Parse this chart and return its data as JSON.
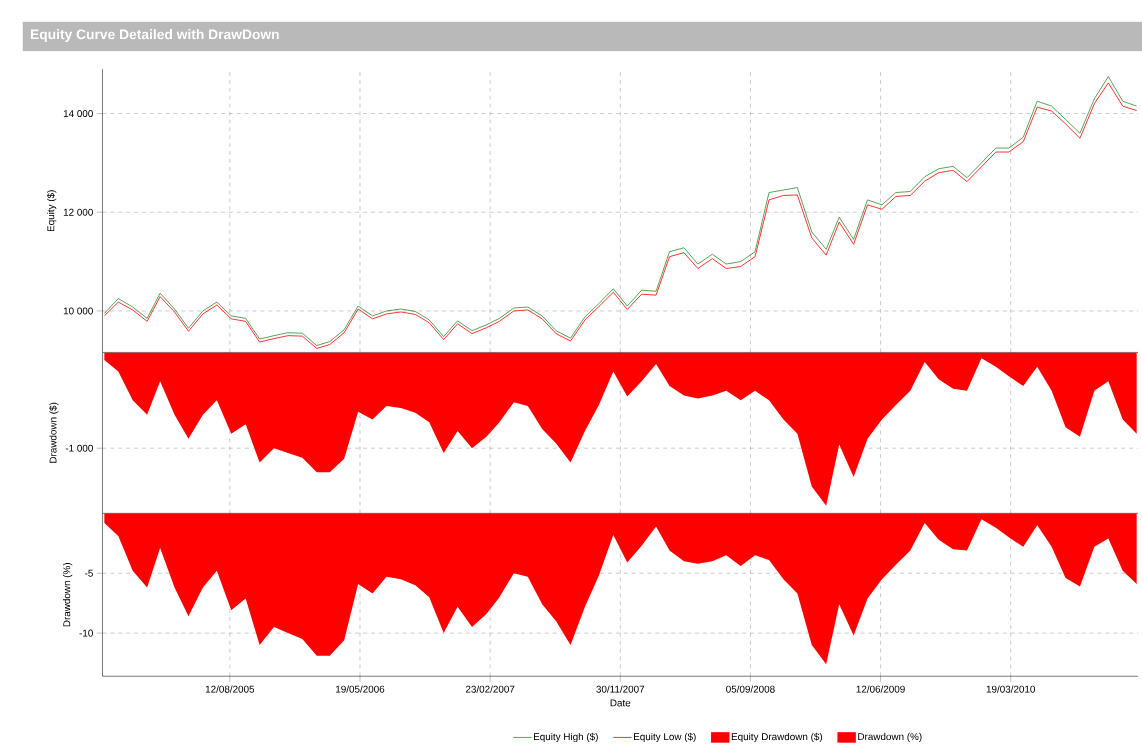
{
  "chart_data": [
    {
      "type": "line",
      "title": "Equity Curve Detailed with DrawDown",
      "ylabel": "Equity ($)",
      "legend": "bottom",
      "grid": true,
      "tick_labels": "y",
      "xlim": [
        "2004-11-11",
        "2010-12-18"
      ],
      "xticks": [
        {
          "value": "2005-08-12",
          "label": null
        },
        {
          "value": "2006-05-19",
          "label": null
        },
        {
          "value": "2007-02-23",
          "label": null
        },
        {
          "value": "2007-11-30",
          "label": null
        },
        {
          "value": "2008-09-05",
          "label": null
        },
        {
          "value": "2009-06-12",
          "label": null
        },
        {
          "value": "2010-03-19",
          "label": null
        }
      ],
      "ylim": [
        9160,
        14900
      ],
      "yticks": [
        {
          "value": 10000,
          "label": "10 000"
        },
        {
          "value": 12000,
          "label": "12 000"
        },
        {
          "value": 14000,
          "label": "14 000"
        }
      ],
      "x": [
        "2004-11-15",
        "2004-12-15",
        "2005-01-15",
        "2005-02-15",
        "2005-03-15",
        "2005-04-15",
        "2005-05-15",
        "2005-06-15",
        "2005-07-15",
        "2005-08-15",
        "2005-09-15",
        "2005-10-15",
        "2005-11-15",
        "2005-12-15",
        "2006-01-15",
        "2006-02-15",
        "2006-03-15",
        "2006-04-15",
        "2006-05-15",
        "2006-06-15",
        "2006-07-15",
        "2006-08-15",
        "2006-09-15",
        "2006-10-15",
        "2006-11-15",
        "2006-12-15",
        "2007-01-15",
        "2007-02-15",
        "2007-03-15",
        "2007-04-15",
        "2007-05-15",
        "2007-06-15",
        "2007-07-15",
        "2007-08-15",
        "2007-09-15",
        "2007-10-15",
        "2007-11-15",
        "2007-12-15",
        "2008-01-15",
        "2008-02-15",
        "2008-03-15",
        "2008-04-15",
        "2008-05-15",
        "2008-06-15",
        "2008-07-15",
        "2008-08-15",
        "2008-09-15",
        "2008-10-15",
        "2008-11-15",
        "2008-12-15",
        "2009-01-15",
        "2009-02-15",
        "2009-03-15",
        "2009-04-15",
        "2009-05-15",
        "2009-06-15",
        "2009-07-15",
        "2009-08-15",
        "2009-09-15",
        "2009-10-15",
        "2009-11-15",
        "2009-12-15",
        "2010-01-15",
        "2010-02-15",
        "2010-03-15",
        "2010-04-15",
        "2010-05-15",
        "2010-06-15",
        "2010-07-15",
        "2010-08-15",
        "2010-09-15",
        "2010-10-15",
        "2010-11-15",
        "2010-12-15"
      ],
      "series": [
        {
          "name": "Equity High ($)",
          "color": "#2e8b2e",
          "values": [
            9950,
            10250,
            10080,
            9850,
            10360,
            10040,
            9650,
            10000,
            10180,
            9900,
            9850,
            9430,
            9500,
            9560,
            9550,
            9300,
            9380,
            9620,
            10100,
            9900,
            10000,
            10040,
            9990,
            9820,
            9480,
            9800,
            9600,
            9720,
            9850,
            10060,
            10080,
            9900,
            9600,
            9450,
            9880,
            10150,
            10450,
            10100,
            10420,
            10400,
            11200,
            11280,
            10950,
            11150,
            10950,
            11000,
            11200,
            12400,
            12450,
            12500,
            11600,
            11250,
            11900,
            11450,
            12250,
            12150,
            12400,
            12420,
            12720,
            12880,
            12930,
            12700,
            13000,
            13300,
            13300,
            13520,
            14250,
            14150,
            13880,
            13600,
            14300,
            14750,
            14250,
            14150
          ]
        },
        {
          "name": "Equity Low ($)",
          "color": "#ff0000",
          "values": [
            9900,
            10180,
            10020,
            9790,
            10290,
            9980,
            9590,
            9940,
            10120,
            9840,
            9790,
            9370,
            9440,
            9500,
            9490,
            9240,
            9320,
            9560,
            10040,
            9840,
            9940,
            9980,
            9930,
            9760,
            9420,
            9740,
            9540,
            9660,
            9790,
            10000,
            10020,
            9840,
            9540,
            9390,
            9820,
            10090,
            10380,
            10030,
            10340,
            10320,
            11100,
            11180,
            10860,
            11060,
            10860,
            10900,
            11100,
            12250,
            12340,
            12350,
            11480,
            11130,
            11800,
            11350,
            12150,
            12060,
            12320,
            12340,
            12630,
            12800,
            12850,
            12620,
            12920,
            13220,
            13220,
            13430,
            14130,
            14050,
            13790,
            13500,
            14200,
            14620,
            14150,
            14060
          ]
        }
      ]
    },
    {
      "type": "area",
      "ylabel": "Drawdown ($)",
      "legend": "bottom",
      "grid": true,
      "tick_labels": "y",
      "xlim": [
        "2004-11-11",
        "2010-12-18"
      ],
      "xticks": [
        {
          "value": "2005-08-12",
          "label": null
        },
        {
          "value": "2006-05-19",
          "label": null
        },
        {
          "value": "2007-02-23",
          "label": null
        },
        {
          "value": "2007-11-30",
          "label": null
        },
        {
          "value": "2008-09-05",
          "label": null
        },
        {
          "value": "2009-06-12",
          "label": null
        },
        {
          "value": "2010-03-19",
          "label": null
        }
      ],
      "ylim": [
        -1680,
        0
      ],
      "yticks": [
        {
          "value": -1000,
          "label": "-1 000"
        }
      ],
      "x": [
        "2004-11-15",
        "2004-12-15",
        "2005-01-15",
        "2005-02-15",
        "2005-03-15",
        "2005-04-15",
        "2005-05-15",
        "2005-06-15",
        "2005-07-15",
        "2005-08-15",
        "2005-09-15",
        "2005-10-15",
        "2005-11-15",
        "2005-12-15",
        "2006-01-15",
        "2006-02-15",
        "2006-03-15",
        "2006-04-15",
        "2006-05-15",
        "2006-06-15",
        "2006-07-15",
        "2006-08-15",
        "2006-09-15",
        "2006-10-15",
        "2006-11-15",
        "2006-12-15",
        "2007-01-15",
        "2007-02-15",
        "2007-03-15",
        "2007-04-15",
        "2007-05-15",
        "2007-06-15",
        "2007-07-15",
        "2007-08-15",
        "2007-09-15",
        "2007-10-15",
        "2007-11-15",
        "2007-12-15",
        "2008-01-15",
        "2008-02-15",
        "2008-03-15",
        "2008-04-15",
        "2008-05-15",
        "2008-06-15",
        "2008-07-15",
        "2008-08-15",
        "2008-09-15",
        "2008-10-15",
        "2008-11-15",
        "2008-12-15",
        "2009-01-15",
        "2009-02-15",
        "2009-03-15",
        "2009-04-15",
        "2009-05-15",
        "2009-06-15",
        "2009-07-15",
        "2009-08-15",
        "2009-09-15",
        "2009-10-15",
        "2009-11-15",
        "2009-12-15",
        "2010-01-15",
        "2010-02-15",
        "2010-03-15",
        "2010-04-15",
        "2010-05-15",
        "2010-06-15",
        "2010-07-15",
        "2010-08-15",
        "2010-09-15",
        "2010-10-15",
        "2010-11-15",
        "2010-12-15"
      ],
      "series": [
        {
          "name": "Equity Drawdown ($)",
          "color": "#ff0000",
          "values": [
            -80,
            -200,
            -500,
            -650,
            -300,
            -650,
            -900,
            -650,
            -500,
            -850,
            -750,
            -1150,
            -1000,
            -1050,
            -1100,
            -1250,
            -1250,
            -1110,
            -620,
            -700,
            -560,
            -580,
            -630,
            -730,
            -1050,
            -820,
            -1000,
            -880,
            -730,
            -520,
            -560,
            -800,
            -950,
            -1150,
            -820,
            -550,
            -200,
            -460,
            -300,
            -120,
            -350,
            -450,
            -480,
            -450,
            -400,
            -500,
            -400,
            -500,
            -700,
            -850,
            -1400,
            -1600,
            -960,
            -1300,
            -900,
            -700,
            -550,
            -400,
            -100,
            -280,
            -380,
            -400,
            -60,
            -150,
            -250,
            -350,
            -150,
            -400,
            -780,
            -880,
            -400,
            -300,
            -700,
            -850
          ]
        }
      ]
    },
    {
      "type": "area",
      "ylabel": "Drawdown (%)",
      "xlabel": "Date",
      "legend": "bottom",
      "grid": true,
      "xlim": [
        "2004-11-11",
        "2010-12-18"
      ],
      "xticks": [
        {
          "value": "2005-08-12",
          "label": "12/08/2005"
        },
        {
          "value": "2006-05-19",
          "label": "19/05/2006"
        },
        {
          "value": "2007-02-23",
          "label": "23/02/2007"
        },
        {
          "value": "2007-11-30",
          "label": "30/11/2007"
        },
        {
          "value": "2008-09-05",
          "label": "05/09/2008"
        },
        {
          "value": "2009-06-12",
          "label": "12/06/2009"
        },
        {
          "value": "2010-03-19",
          "label": "19/03/2010"
        }
      ],
      "ylim": [
        -13.6,
        0
      ],
      "yticks": [
        -10,
        -5
      ],
      "x": [
        "2004-11-15",
        "2004-12-15",
        "2005-01-15",
        "2005-02-15",
        "2005-03-15",
        "2005-04-15",
        "2005-05-15",
        "2005-06-15",
        "2005-07-15",
        "2005-08-15",
        "2005-09-15",
        "2005-10-15",
        "2005-11-15",
        "2005-12-15",
        "2006-01-15",
        "2006-02-15",
        "2006-03-15",
        "2006-04-15",
        "2006-05-15",
        "2006-06-15",
        "2006-07-15",
        "2006-08-15",
        "2006-09-15",
        "2006-10-15",
        "2006-11-15",
        "2006-12-15",
        "2007-01-15",
        "2007-02-15",
        "2007-03-15",
        "2007-04-15",
        "2007-05-15",
        "2007-06-15",
        "2007-07-15",
        "2007-08-15",
        "2007-09-15",
        "2007-10-15",
        "2007-11-15",
        "2007-12-15",
        "2008-01-15",
        "2008-02-15",
        "2008-03-15",
        "2008-04-15",
        "2008-05-15",
        "2008-06-15",
        "2008-07-15",
        "2008-08-15",
        "2008-09-15",
        "2008-10-15",
        "2008-11-15",
        "2008-12-15",
        "2009-01-15",
        "2009-02-15",
        "2009-03-15",
        "2009-04-15",
        "2009-05-15",
        "2009-06-15",
        "2009-07-15",
        "2009-08-15",
        "2009-09-15",
        "2009-10-15",
        "2009-11-15",
        "2009-12-15",
        "2010-01-15",
        "2010-02-15",
        "2010-03-15",
        "2010-04-15",
        "2010-05-15",
        "2010-06-15",
        "2010-07-15",
        "2010-08-15",
        "2010-09-15",
        "2010-10-15",
        "2010-11-15",
        "2010-12-15"
      ],
      "series": [
        {
          "name": "Drawdown (%)",
          "color": "#ff0000",
          "values": [
            -0.8,
            -1.9,
            -4.8,
            -6.2,
            -2.9,
            -6.2,
            -8.6,
            -6.2,
            -4.8,
            -8.1,
            -7.1,
            -11.0,
            -9.5,
            -10.0,
            -10.5,
            -11.9,
            -11.9,
            -10.6,
            -5.9,
            -6.7,
            -5.3,
            -5.5,
            -6.0,
            -7.0,
            -10.0,
            -7.8,
            -9.5,
            -8.4,
            -7.0,
            -5.0,
            -5.3,
            -7.6,
            -9.0,
            -11.0,
            -7.8,
            -5.2,
            -1.8,
            -4.1,
            -2.7,
            -1.1,
            -3.1,
            -4.0,
            -4.2,
            -4.0,
            -3.5,
            -4.4,
            -3.5,
            -3.9,
            -5.5,
            -6.7,
            -11.0,
            -12.6,
            -7.6,
            -10.2,
            -7.1,
            -5.5,
            -4.3,
            -3.1,
            -0.8,
            -2.2,
            -3.0,
            -3.1,
            -0.5,
            -1.2,
            -2.0,
            -2.8,
            -1.0,
            -2.8,
            -5.4,
            -6.1,
            -2.8,
            -2.1,
            -4.8,
            -5.9
          ]
        }
      ]
    }
  ]
}
